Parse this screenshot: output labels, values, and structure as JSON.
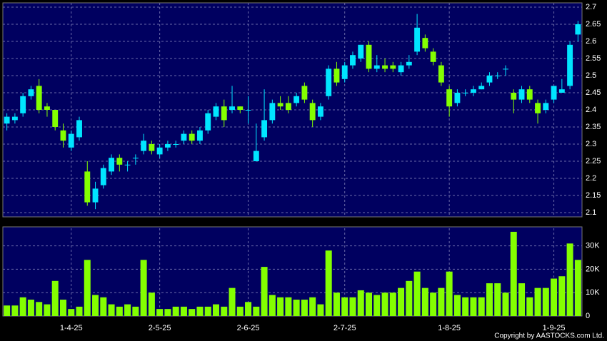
{
  "chart_data": [
    {
      "type": "candlestick",
      "color_up": "#00e5ff",
      "color_down": "#84ff00",
      "grid": true,
      "categories": [
        null,
        null,
        null,
        null,
        null,
        null,
        null,
        null,
        "1-4-25",
        null,
        null,
        null,
        null,
        null,
        null,
        null,
        null,
        null,
        null,
        "2-5-25",
        null,
        null,
        null,
        null,
        null,
        null,
        null,
        null,
        null,
        null,
        "2-6-25",
        null,
        null,
        null,
        null,
        null,
        null,
        null,
        null,
        null,
        null,
        null,
        "2-7-25",
        null,
        null,
        null,
        null,
        null,
        null,
        null,
        null,
        null,
        null,
        null,
        null,
        "1-8-25",
        null,
        null,
        null,
        null,
        null,
        null,
        null,
        null,
        null,
        null,
        null,
        null,
        "1-9-25",
        null,
        null,
        null
      ],
      "open": [
        2.36,
        2.37,
        2.39,
        2.44,
        2.47,
        2.41,
        2.4,
        2.34,
        2.29,
        2.32,
        2.22,
        2.13,
        2.18,
        2.22,
        2.26,
        2.24,
        2.26,
        2.28,
        2.3,
        2.27,
        2.29,
        2.3,
        2.31,
        2.33,
        2.31,
        2.34,
        2.38,
        2.41,
        2.4,
        2.41,
        2.4,
        2.25,
        2.32,
        2.37,
        2.42,
        2.42,
        2.42,
        2.47,
        2.42,
        2.38,
        2.44,
        2.52,
        2.49,
        2.53,
        2.55,
        2.59,
        2.52,
        2.53,
        2.53,
        2.51,
        2.53,
        2.57,
        2.61,
        2.57,
        2.53,
        2.46,
        2.42,
        2.45,
        2.45,
        2.46,
        2.48,
        2.5,
        2.52,
        2.45,
        2.43,
        2.46,
        2.42,
        2.4,
        2.43,
        2.45,
        2.47,
        2.62
      ],
      "high": [
        2.39,
        2.39,
        2.45,
        2.47,
        2.49,
        2.42,
        2.4,
        2.36,
        2.34,
        2.38,
        2.25,
        2.19,
        2.24,
        2.27,
        2.27,
        2.25,
        2.27,
        2.33,
        2.31,
        2.3,
        2.31,
        2.31,
        2.34,
        2.34,
        2.35,
        2.4,
        2.42,
        2.43,
        2.47,
        2.41,
        2.44,
        2.36,
        2.46,
        2.43,
        2.44,
        2.44,
        2.45,
        2.48,
        2.43,
        2.42,
        2.53,
        2.54,
        2.54,
        2.57,
        2.59,
        2.6,
        2.56,
        2.55,
        2.54,
        2.54,
        2.56,
        2.68,
        2.62,
        2.58,
        2.54,
        2.47,
        2.46,
        2.46,
        2.47,
        2.48,
        2.51,
        2.51,
        2.53,
        2.46,
        2.47,
        2.47,
        2.43,
        2.43,
        2.47,
        2.49,
        2.6,
        2.66
      ],
      "low": [
        2.34,
        2.36,
        2.38,
        2.43,
        2.39,
        2.38,
        2.34,
        2.29,
        2.28,
        2.31,
        2.12,
        2.11,
        2.17,
        2.21,
        2.22,
        2.22,
        2.24,
        2.27,
        2.27,
        2.26,
        2.28,
        2.29,
        2.3,
        2.3,
        2.3,
        2.33,
        2.37,
        2.35,
        2.39,
        2.39,
        2.36,
        2.25,
        2.31,
        2.36,
        2.4,
        2.39,
        2.41,
        2.42,
        2.35,
        2.37,
        2.43,
        2.47,
        2.48,
        2.52,
        2.54,
        2.51,
        2.51,
        2.51,
        2.51,
        2.5,
        2.52,
        2.56,
        2.57,
        2.53,
        2.47,
        2.38,
        2.41,
        2.44,
        2.44,
        2.46,
        2.47,
        2.49,
        2.5,
        2.39,
        2.42,
        2.42,
        2.36,
        2.39,
        2.42,
        2.45,
        2.46,
        2.6
      ],
      "close": [
        2.38,
        2.38,
        2.44,
        2.46,
        2.4,
        2.4,
        2.35,
        2.31,
        2.33,
        2.37,
        2.13,
        2.17,
        2.23,
        2.26,
        2.24,
        2.24,
        2.26,
        2.31,
        2.28,
        2.29,
        2.3,
        2.3,
        2.33,
        2.31,
        2.34,
        2.39,
        2.41,
        2.37,
        2.41,
        2.4,
        2.4,
        2.28,
        2.37,
        2.42,
        2.41,
        2.4,
        2.44,
        2.43,
        2.37,
        2.41,
        2.52,
        2.48,
        2.53,
        2.56,
        2.59,
        2.52,
        2.53,
        2.52,
        2.52,
        2.53,
        2.54,
        2.64,
        2.58,
        2.54,
        2.48,
        2.41,
        2.45,
        2.45,
        2.46,
        2.47,
        2.5,
        2.5,
        2.52,
        2.43,
        2.46,
        2.43,
        2.39,
        2.42,
        2.47,
        2.46,
        2.59,
        2.65
      ],
      "ylim": [
        2.0875,
        2.7125
      ],
      "yticks": [
        2.1,
        2.15,
        2.2,
        2.25,
        2.3,
        2.35,
        2.4,
        2.45,
        2.5,
        2.55,
        2.6,
        2.65,
        2.7
      ]
    },
    {
      "type": "bar",
      "color": "#84ff00",
      "grid": true,
      "values": [
        4500,
        4500,
        8000,
        7000,
        6000,
        5000,
        15000,
        7000,
        3000,
        4000,
        24000,
        9000,
        8000,
        5000,
        4000,
        5000,
        4000,
        24000,
        10000,
        3000,
        3000,
        4000,
        4000,
        3000,
        4000,
        4000,
        5000,
        4000,
        12000,
        4000,
        6000,
        4000,
        21000,
        9000,
        8000,
        8000,
        7000,
        7000,
        8000,
        5000,
        28000,
        10000,
        8000,
        8000,
        11000,
        10000,
        9000,
        10000,
        10000,
        12000,
        15000,
        19000,
        12000,
        10000,
        12000,
        19000,
        9000,
        8000,
        8000,
        8000,
        14000,
        14000,
        10000,
        36000,
        14000,
        8000,
        12000,
        12000,
        16000,
        17000,
        31000,
        24000
      ],
      "ylim": [
        0,
        37500
      ],
      "yticks": [
        {
          "value": 0,
          "label": "0"
        },
        {
          "value": 10000,
          "label": "10K"
        },
        {
          "value": 20000,
          "label": "20K"
        },
        {
          "value": 30000,
          "label": "30K"
        }
      ]
    }
  ],
  "copyright": "Copyright by AASTOCKS.com Ltd."
}
